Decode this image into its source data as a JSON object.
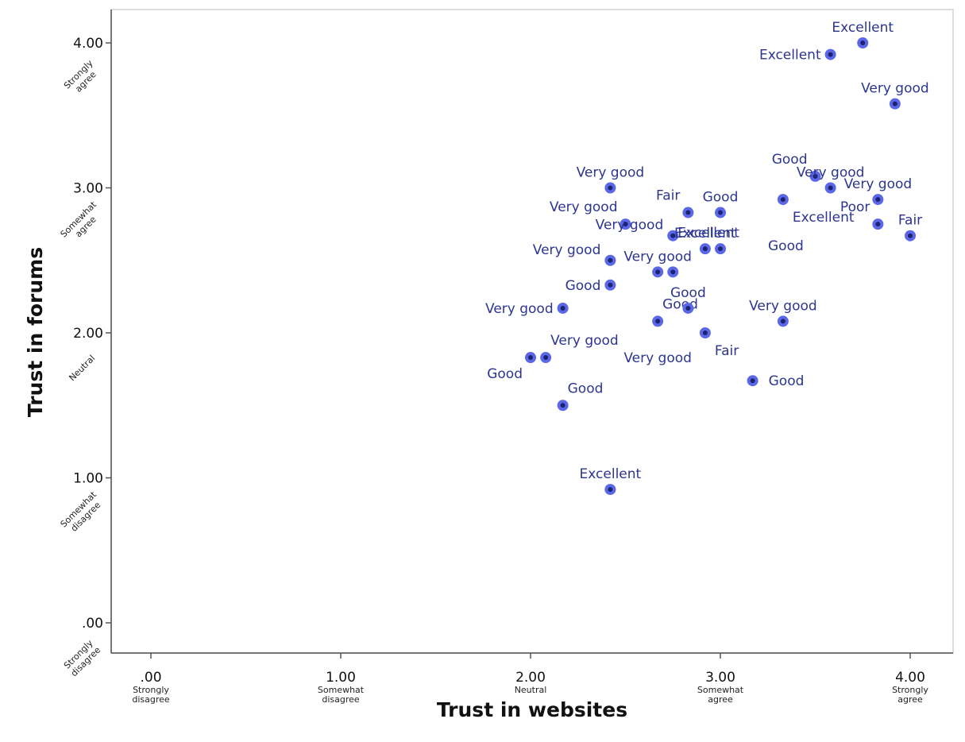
{
  "chart_data": {
    "type": "scatter",
    "xlabel": "Trust in websites",
    "ylabel": "Trust in forums",
    "xlim": [
      -0.2,
      4.22
    ],
    "ylim": [
      -0.22,
      4.22
    ],
    "grid": false,
    "x_ticks": [
      {
        "value": 0,
        "label": ".00",
        "sublabel": [
          "Strongly",
          "disagree"
        ]
      },
      {
        "value": 1,
        "label": "1.00",
        "sublabel": [
          "Somewhat",
          "disagree"
        ]
      },
      {
        "value": 2,
        "label": "2.00",
        "sublabel": [
          "Neutral"
        ]
      },
      {
        "value": 3,
        "label": "3.00",
        "sublabel": [
          "Somewhat",
          "agree"
        ]
      },
      {
        "value": 4,
        "label": "4.00",
        "sublabel": [
          "Strongly",
          "agree"
        ]
      }
    ],
    "y_ticks": [
      {
        "value": 0,
        "label": ".00",
        "sublabel": [
          "Strongly",
          "disagree"
        ]
      },
      {
        "value": 1,
        "label": "1.00",
        "sublabel": [
          "Somewhat",
          "disagree"
        ]
      },
      {
        "value": 2,
        "label": "2.00",
        "sublabel": [
          "Neutral"
        ]
      },
      {
        "value": 3,
        "label": "3.00",
        "sublabel": [
          "Somewhat",
          "agree"
        ]
      },
      {
        "value": 4,
        "label": "4.00",
        "sublabel": [
          "Strongly",
          "agree"
        ]
      }
    ],
    "points": [
      {
        "x": 3.75,
        "y": 4.0,
        "label": "Excellent",
        "anchor": "above"
      },
      {
        "x": 3.58,
        "y": 3.92,
        "label": "Excellent",
        "anchor": "left"
      },
      {
        "x": 3.92,
        "y": 3.58,
        "label": "Very good",
        "anchor": "above"
      },
      {
        "x": 2.42,
        "y": 3.0,
        "label": "Very good",
        "anchor": "above"
      },
      {
        "x": 3.5,
        "y": 3.08,
        "label": "Good",
        "anchor": "above-left"
      },
      {
        "x": 3.58,
        "y": 3.0,
        "label": "Very good",
        "anchor": "above"
      },
      {
        "x": 3.83,
        "y": 2.92,
        "label": "Very good",
        "anchor": "above"
      },
      {
        "x": 2.83,
        "y": 2.83,
        "label": "Fair",
        "anchor": "above-left"
      },
      {
        "x": 3.0,
        "y": 2.83,
        "label": "Good",
        "anchor": "above"
      },
      {
        "x": 3.33,
        "y": 2.92,
        "label": "Excellent",
        "anchor": "below"
      },
      {
        "x": 2.5,
        "y": 2.75,
        "label": "Very good",
        "anchor": "above-left"
      },
      {
        "x": 3.83,
        "y": 2.75,
        "label": "Poor",
        "anchor": "above-left"
      },
      {
        "x": 4.0,
        "y": 2.67,
        "label": "Fair",
        "anchor": "above"
      },
      {
        "x": 2.75,
        "y": 2.67,
        "label": "Very good",
        "anchor": "far-left"
      },
      {
        "x": 2.92,
        "y": 2.58,
        "label": "Excellent",
        "anchor": "above"
      },
      {
        "x": 3.0,
        "y": 2.58,
        "label": "Good",
        "anchor": "right-far"
      },
      {
        "x": 2.42,
        "y": 2.5,
        "label": "Very good",
        "anchor": "far-left"
      },
      {
        "x": 2.67,
        "y": 2.42,
        "label": "Very good",
        "anchor": "above"
      },
      {
        "x": 2.75,
        "y": 2.42,
        "label": "Excellent",
        "anchor": "right-up"
      },
      {
        "x": 2.42,
        "y": 2.33,
        "label": "Good",
        "anchor": "left"
      },
      {
        "x": 2.67,
        "y": 2.08,
        "label": "Good",
        "anchor": "above-right"
      },
      {
        "x": 2.83,
        "y": 2.17,
        "label": "Good",
        "anchor": "above"
      },
      {
        "x": 2.17,
        "y": 2.17,
        "label": "Very good",
        "anchor": "left"
      },
      {
        "x": 3.33,
        "y": 2.08,
        "label": "Very good",
        "anchor": "above"
      },
      {
        "x": 2.92,
        "y": 2.0,
        "label": "Fair",
        "anchor": "below"
      },
      {
        "x": 2.0,
        "y": 1.83,
        "label": "Good",
        "anchor": "below-left"
      },
      {
        "x": 2.08,
        "y": 1.83,
        "label": "Very good",
        "anchor": "above-right"
      },
      {
        "x": 3.17,
        "y": 1.67,
        "label": "Good",
        "anchor": "right"
      },
      {
        "x": 2.17,
        "y": 1.5,
        "label": "Good",
        "anchor": "above-right"
      },
      {
        "x": 2.42,
        "y": 0.92,
        "label": "Excellent",
        "anchor": "above"
      }
    ],
    "extra_labels": [
      {
        "x": 2.67,
        "y": 1.83,
        "label": "Very good"
      }
    ],
    "colors": {
      "marker_fill": "#5a68e8",
      "marker_center": "#1d2270",
      "label_text": "#2c3590",
      "axis": "#555555",
      "frame": "#dddddd"
    }
  }
}
